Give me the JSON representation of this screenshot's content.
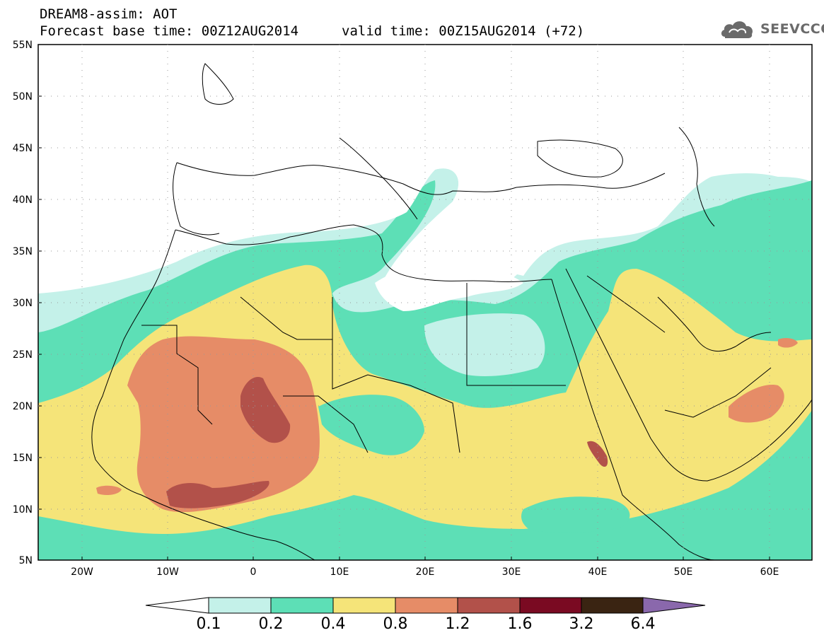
{
  "header": {
    "title_line1": "DREAM8-assim: AOT",
    "title_line2": "Forecast base time: 00Z12AUG2014",
    "valid_time": "valid time: 00Z15AUG2014 (+72)"
  },
  "logo": {
    "text": "SEEVCCC",
    "icon": "cloud-icon"
  },
  "axes": {
    "lat_labels": [
      "55N",
      "50N",
      "45N",
      "40N",
      "35N",
      "30N",
      "25N",
      "20N",
      "15N",
      "10N",
      "5N"
    ],
    "lon_labels": [
      "20W",
      "10W",
      "0",
      "10E",
      "20E",
      "30E",
      "40E",
      "50E",
      "60E"
    ]
  },
  "colorbar": {
    "labels": [
      "0.1",
      "0.2",
      "0.4",
      "0.8",
      "1.2",
      "1.6",
      "3.2",
      "6.4"
    ],
    "colors": [
      "#c4f1e9",
      "#5ddfb6",
      "#f5e479",
      "#e68c67",
      "#b2514a",
      "#7a0a22",
      "#3a2412",
      "#8a68ac"
    ]
  },
  "map_colors": {
    "ocean": "#ffffff",
    "land_border": "#000000",
    "aot_0_1": "#c4f1e9",
    "aot_0_2": "#5ddfb6",
    "aot_0_4": "#f5e479",
    "aot_0_8": "#e68c67",
    "aot_1_2": "#b2514a"
  }
}
